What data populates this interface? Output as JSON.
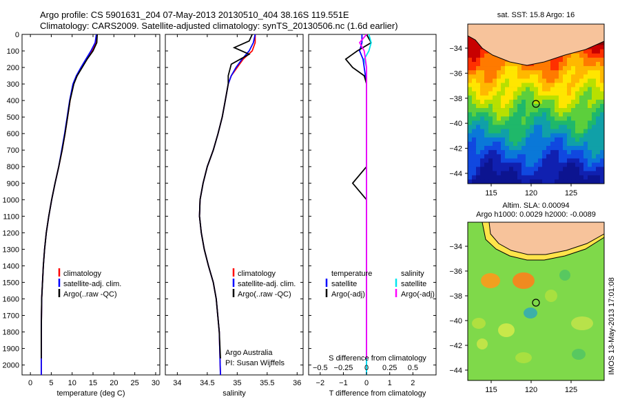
{
  "header": {
    "line1": "Argo profile: CS 5901631_204 07-May-2013 20130510_404 38.16S 119.551E",
    "line2": "Climatology: CARS2009. Satellite-adjusted climatology: synTS_20130506.nc (1.6d earlier)"
  },
  "credits": {
    "line1": "Argo Australia",
    "line2": "PI: Susan Wijffels"
  },
  "timestamp": "IMOS 13-May-2013 17:01:08",
  "depth_ticks": [
    0,
    100,
    200,
    300,
    400,
    500,
    600,
    700,
    800,
    900,
    1000,
    1100,
    1200,
    1300,
    1400,
    1500,
    1600,
    1700,
    1800,
    1900,
    2000
  ],
  "colors": {
    "climatology": "#ff0000",
    "satellite": "#0000ff",
    "argo": "#000000",
    "sal_satellite": "#00e5ee",
    "sal_argo": "#ff00ff",
    "land": "#f7c39b"
  },
  "panels": {
    "temperature": {
      "xlabel": "temperature (deg C)",
      "xticks": [
        0,
        5,
        10,
        15,
        20,
        25,
        30
      ],
      "legend": [
        "climatology",
        "satellite-adj. clim.",
        "Argo(..raw -QC)"
      ]
    },
    "salinity": {
      "xlabel": "salinity",
      "xticks": [
        "34",
        "34.5",
        "35",
        "35.5",
        "36"
      ],
      "legend": [
        "climatology",
        "satellite-adj. clim.",
        "Argo(..raw -QC)"
      ]
    },
    "difference": {
      "top_xlabel": "S difference from climatology",
      "top_ticks": [
        "−0.5",
        "−0.25",
        "0",
        "0.25",
        "0.5"
      ],
      "xlabel": "T difference from climatology",
      "bottom_ticks": [
        "−2",
        "−1",
        "0",
        "1",
        "2"
      ],
      "legend_left_title": "temperature",
      "legend_right_title": "salinity",
      "legend_items": [
        "satellite",
        "Argo(-adj)"
      ]
    }
  },
  "maps": {
    "sst": {
      "title": "sat. SST: 15.8 Argo: 16",
      "yticks": [
        "−34",
        "−36",
        "−38",
        "−40",
        "−42",
        "−44"
      ],
      "xticks": [
        "115",
        "120",
        "125"
      ]
    },
    "sla": {
      "title1": "Altim. SLA: 0.00094",
      "title2": "Argo h1000: 0.0029 h2000: -0.0089",
      "yticks": [
        "−34",
        "−36",
        "−38",
        "−40",
        "−42",
        "−44"
      ],
      "xticks": [
        "115",
        "120",
        "125"
      ]
    }
  },
  "chart_data": [
    {
      "type": "line",
      "title": "temperature",
      "xlabel": "temperature (deg C)",
      "ylabel": "",
      "xlim": [
        -2,
        31
      ],
      "ylim": [
        2060,
        0
      ],
      "series": [
        {
          "name": "climatology",
          "x": [
            16.0,
            15.7,
            14.8,
            13.5,
            12.3,
            11.2,
            10.3,
            9.5,
            8.9,
            8.3,
            7.6,
            6.8,
            5.9,
            5.1,
            4.4,
            3.8,
            3.4,
            3.1,
            2.9,
            2.7,
            2.6,
            2.6
          ],
          "y": [
            0,
            50,
            100,
            150,
            200,
            250,
            300,
            400,
            500,
            600,
            700,
            800,
            900,
            1000,
            1100,
            1200,
            1300,
            1400,
            1500,
            1600,
            1800,
            2060
          ]
        },
        {
          "name": "satellite-adj. clim.",
          "x": [
            15.8,
            15.5,
            14.5,
            13.3,
            12.1,
            11.0,
            10.2,
            9.4,
            8.8,
            8.2,
            7.5,
            6.8,
            5.9,
            5.1,
            4.4,
            3.8,
            3.4,
            3.1,
            2.9,
            2.7,
            2.6,
            2.6
          ],
          "y": [
            0,
            50,
            100,
            150,
            200,
            250,
            300,
            400,
            500,
            600,
            700,
            800,
            900,
            1000,
            1100,
            1200,
            1300,
            1400,
            1500,
            1600,
            1800,
            2060
          ]
        },
        {
          "name": "Argo(..raw -QC)",
          "x": [
            16.0,
            15.9,
            15.0,
            13.6,
            12.4,
            11.2,
            10.4,
            9.5,
            8.9,
            8.3,
            7.6,
            6.8,
            5.9,
            5.1,
            4.4,
            3.8,
            3.4,
            3.1,
            2.9,
            2.7,
            2.6,
            2.6
          ],
          "y": [
            0,
            50,
            100,
            150,
            200,
            250,
            300,
            400,
            500,
            600,
            700,
            800,
            900,
            1000,
            1100,
            1200,
            1300,
            1400,
            1500,
            1600,
            1800,
            1960
          ]
        }
      ]
    },
    {
      "type": "line",
      "title": "salinity",
      "xlabel": "salinity",
      "ylabel": "",
      "xlim": [
        33.8,
        36.1
      ],
      "ylim": [
        2060,
        0
      ],
      "series": [
        {
          "name": "climatology",
          "x": [
            35.3,
            35.3,
            35.25,
            35.1,
            35.0,
            34.9,
            34.85,
            34.8,
            34.75,
            34.68,
            34.6,
            34.5,
            34.43,
            34.38,
            34.37,
            34.4,
            34.45,
            34.52,
            34.6,
            34.65,
            34.7,
            34.72
          ],
          "y": [
            0,
            50,
            100,
            150,
            200,
            250,
            300,
            400,
            500,
            600,
            700,
            800,
            900,
            1000,
            1100,
            1200,
            1300,
            1400,
            1500,
            1600,
            1800,
            2060
          ]
        },
        {
          "name": "satellite-adj. clim.",
          "x": [
            35.3,
            35.27,
            35.2,
            35.08,
            34.98,
            34.9,
            34.85,
            34.8,
            34.75,
            34.68,
            34.6,
            34.5,
            34.43,
            34.38,
            34.37,
            34.4,
            34.45,
            34.52,
            34.6,
            34.65,
            34.7,
            34.72
          ],
          "y": [
            0,
            50,
            100,
            150,
            200,
            250,
            300,
            400,
            500,
            600,
            700,
            800,
            900,
            1000,
            1100,
            1200,
            1300,
            1400,
            1500,
            1600,
            1800,
            2060
          ]
        },
        {
          "name": "Argo(..raw -QC)",
          "x": [
            35.25,
            35.2,
            34.95,
            35.2,
            34.9,
            34.85,
            34.85,
            34.8,
            34.75,
            34.68,
            34.6,
            34.5,
            34.43,
            34.38,
            34.37,
            34.4,
            34.45,
            34.52,
            34.6,
            34.65,
            34.7,
            34.72
          ],
          "y": [
            0,
            40,
            80,
            120,
            180,
            250,
            300,
            400,
            500,
            600,
            700,
            800,
            900,
            1000,
            1100,
            1200,
            1300,
            1400,
            1500,
            1600,
            1800,
            1960
          ]
        }
      ]
    },
    {
      "type": "line",
      "title": "difference from climatology",
      "xlabel": "T difference from climatology",
      "ylabel": "",
      "xlim": [
        -2.5,
        3
      ],
      "ylim": [
        2060,
        0
      ],
      "series": [
        {
          "name": "temperature satellite",
          "x": [
            -0.2,
            -0.2,
            -0.3,
            -0.15,
            -0.1,
            -0.05,
            0,
            0,
            0,
            0,
            0,
            0,
            0,
            0,
            0,
            0,
            0,
            0,
            0,
            0
          ],
          "y": [
            0,
            50,
            100,
            150,
            200,
            250,
            300,
            400,
            500,
            600,
            700,
            800,
            900,
            1000,
            1100,
            1200,
            1400,
            1600,
            1800,
            2060
          ]
        },
        {
          "name": "temperature Argo(-adj)",
          "x": [
            0,
            0.2,
            -0.4,
            -0.9,
            -0.6,
            -0.1,
            0,
            0,
            0,
            0,
            0,
            0,
            -0.6,
            0,
            0,
            0,
            0,
            0,
            0,
            0
          ],
          "y": [
            0,
            50,
            100,
            150,
            200,
            250,
            300,
            400,
            500,
            600,
            700,
            800,
            900,
            1000,
            1100,
            1200,
            1400,
            1600,
            1800,
            1960
          ]
        },
        {
          "name": "salinity satellite",
          "x": [
            0.1,
            0.2,
            0.1,
            -0.1,
            0,
            0,
            0,
            0,
            0,
            0,
            0,
            0,
            0,
            0,
            0,
            0,
            0,
            0,
            0,
            0
          ],
          "y": [
            0,
            50,
            100,
            150,
            200,
            250,
            300,
            400,
            500,
            600,
            700,
            800,
            900,
            1000,
            1100,
            1200,
            1400,
            1600,
            1800,
            2060
          ]
        },
        {
          "name": "salinity Argo(-adj)",
          "x": [
            0,
            -0.3,
            -0.1,
            -0.05,
            0,
            0,
            0,
            0,
            0,
            0,
            0,
            0,
            0,
            0,
            0,
            0,
            0,
            0,
            0,
            0
          ],
          "y": [
            0,
            50,
            100,
            150,
            200,
            250,
            300,
            400,
            500,
            600,
            700,
            800,
            900,
            1000,
            1100,
            1200,
            1400,
            1600,
            1800,
            1960
          ]
        }
      ]
    }
  ]
}
